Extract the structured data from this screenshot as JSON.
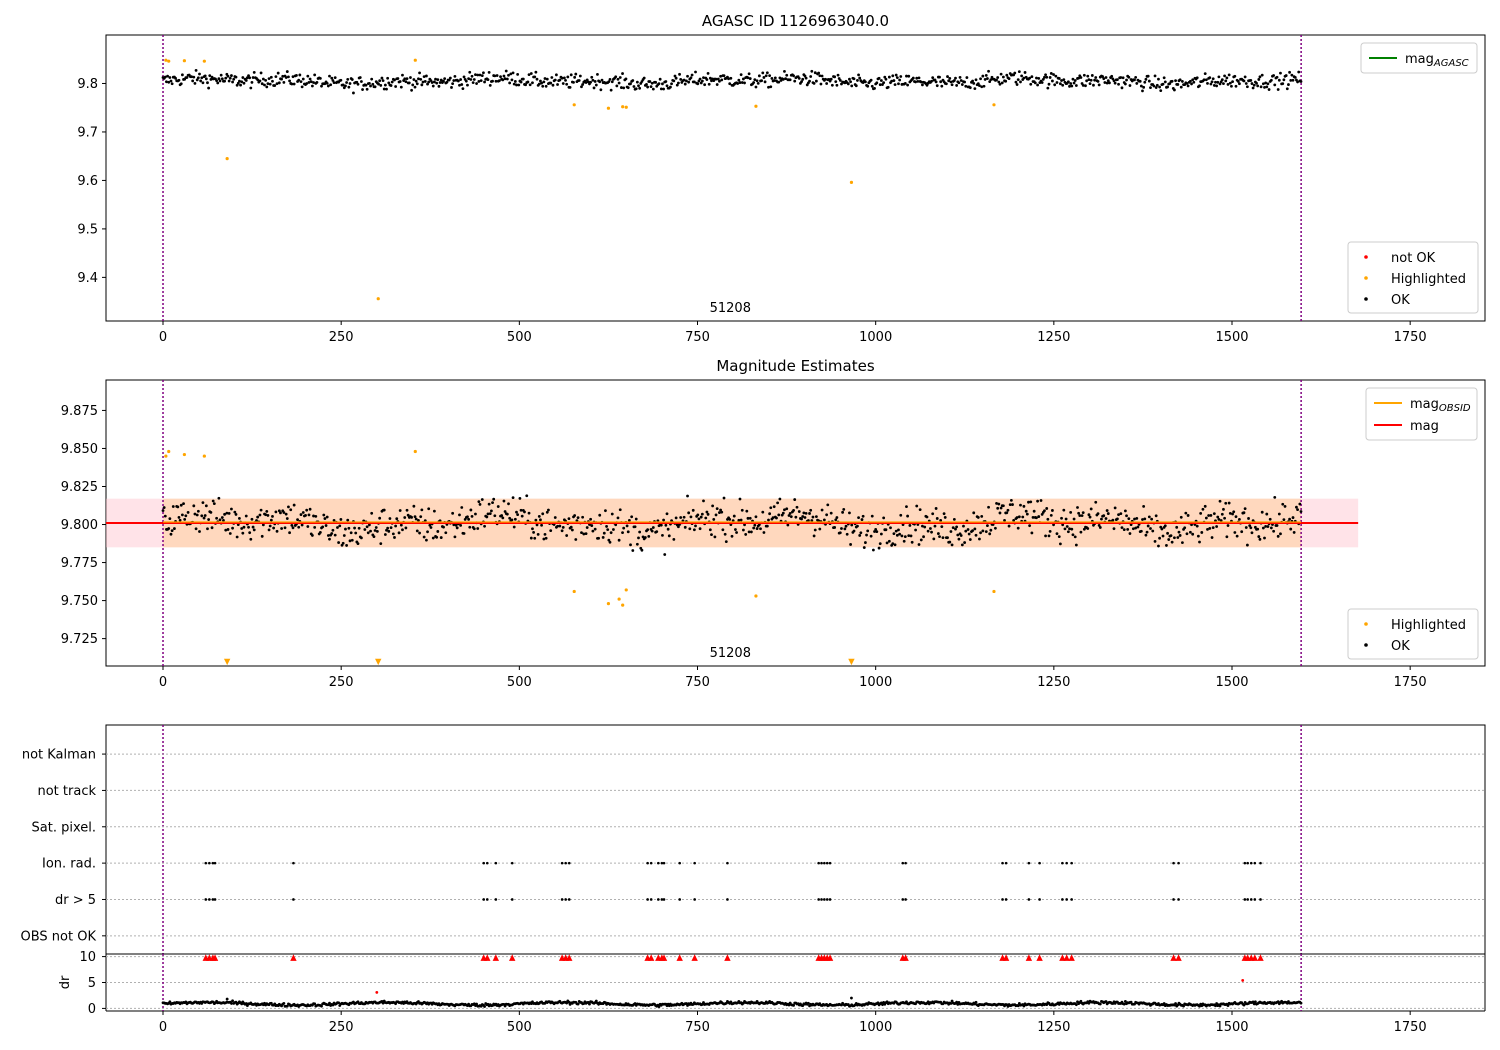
{
  "chart_data": [
    {
      "panel": "agasc",
      "type": "scatter",
      "title": "AGASC ID 1126963040.0",
      "xlim": [
        -80,
        1855
      ],
      "ylim": [
        9.31,
        9.9
      ],
      "xticks": [
        0,
        250,
        500,
        750,
        1000,
        1250,
        1500,
        1750
      ],
      "yticks": [
        9.4,
        9.5,
        9.6,
        9.7,
        9.8
      ],
      "ytick_labels": [
        "9.4",
        "9.5",
        "9.6",
        "9.7",
        "9.8"
      ],
      "vlines": [
        0,
        1597
      ],
      "obsid_label": {
        "text": "51208",
        "x": 796
      },
      "legend_lines": [
        {
          "name": "mag",
          "sub": "AGASC",
          "color": "#008000"
        }
      ],
      "legend_points": [
        {
          "name": "not OK",
          "color": "#ff0000"
        },
        {
          "name": "Highlighted",
          "color": "#ffa500"
        },
        {
          "name": "OK",
          "color": "#000000"
        }
      ],
      "series": [
        {
          "name": "OK",
          "color": "#000000",
          "kind": "ok_band",
          "x_range": [
            0,
            1597
          ],
          "center": 9.805,
          "spread": 0.022
        },
        {
          "name": "Highlighted",
          "color": "#ffa500",
          "x": [
            4,
            8,
            30,
            58,
            90,
            302,
            354,
            577,
            625,
            645,
            650,
            832,
            966,
            1166
          ],
          "y": [
            9.848,
            9.846,
            9.847,
            9.846,
            9.645,
            9.356,
            9.848,
            9.756,
            9.749,
            9.752,
            9.751,
            9.753,
            9.596,
            9.756
          ]
        }
      ]
    },
    {
      "panel": "mag",
      "type": "scatter",
      "title": "Magnitude Estimates",
      "xlim": [
        -80,
        1855
      ],
      "ylim": [
        9.707,
        9.895
      ],
      "xticks": [
        0,
        250,
        500,
        750,
        1000,
        1250,
        1500,
        1750
      ],
      "yticks": [
        9.725,
        9.75,
        9.775,
        9.8,
        9.825,
        9.85,
        9.875
      ],
      "ytick_labels": [
        "9.725",
        "9.750",
        "9.775",
        "9.800",
        "9.825",
        "9.850",
        "9.875"
      ],
      "vlines": [
        0,
        1597
      ],
      "obsid_label": {
        "text": "51208",
        "x": 796
      },
      "mag_line": {
        "value": 9.801,
        "x_range": [
          -80,
          1677
        ]
      },
      "mag_band": {
        "low": 9.785,
        "high": 9.817,
        "x_range": [
          -80,
          1677
        ]
      },
      "legend_lines": [
        {
          "name": "mag",
          "sub": "OBSID",
          "color": "#ffa500"
        },
        {
          "name": "mag",
          "sub": "",
          "color": "#ff0000"
        }
      ],
      "legend_points": [
        {
          "name": "Highlighted",
          "color": "#ffa500"
        },
        {
          "name": "OK",
          "color": "#000000"
        }
      ],
      "series": [
        {
          "name": "OK",
          "color": "#000000",
          "kind": "ok_band",
          "x_range": [
            0,
            1597
          ],
          "center": 9.801,
          "spread": 0.018
        },
        {
          "name": "Highlighted",
          "color": "#ffa500",
          "x": [
            4,
            8,
            30,
            58,
            354,
            577,
            625,
            640,
            645,
            650,
            832,
            1166
          ],
          "y": [
            9.845,
            9.848,
            9.846,
            9.845,
            9.848,
            9.756,
            9.748,
            9.751,
            9.747,
            9.757,
            9.753,
            9.756
          ]
        },
        {
          "name": "Highlighted (off-scale)",
          "color": "#ffa500",
          "marker": "triangle-down",
          "x": [
            90,
            302,
            966
          ],
          "y": [
            9.709,
            9.709,
            9.709
          ]
        }
      ]
    },
    {
      "panel": "flags",
      "type": "scatter",
      "xlim": [
        -80,
        1855
      ],
      "ylim": [
        -0.5,
        5.8
      ],
      "categories": [
        "not Kalman",
        "not track",
        "Sat. pixel.",
        "Ion. rad.",
        "dr > 5",
        "OBS not OK"
      ],
      "category_levels": [
        5,
        4,
        3,
        2,
        1,
        0
      ],
      "vlines": [
        0,
        1597
      ],
      "flag_x": [
        60,
        65,
        70,
        73,
        183,
        450,
        455,
        467,
        490,
        560,
        565,
        570,
        680,
        685,
        695,
        700,
        703,
        725,
        746,
        792,
        920,
        924,
        928,
        932,
        936,
        1038,
        1042,
        1178,
        1183,
        1215,
        1230,
        1262,
        1268,
        1275,
        1418,
        1425,
        1518,
        1522,
        1527,
        1532,
        1540
      ],
      "flag_rows": [
        "Ion. rad.",
        "dr > 5"
      ]
    },
    {
      "panel": "dr",
      "type": "scatter",
      "ylabel": "dr",
      "xlim": [
        -80,
        1855
      ],
      "ylim": [
        -0.5,
        10.5
      ],
      "xticks": [
        0,
        250,
        500,
        750,
        1000,
        1250,
        1500,
        1750
      ],
      "yticks": [
        0,
        5,
        10
      ],
      "vlines": [
        0,
        1597
      ],
      "series": [
        {
          "name": "OK",
          "color": "#000000",
          "kind": "dr_band",
          "x_range": [
            0,
            1597
          ],
          "center": 0.9,
          "spread": 0.45
        },
        {
          "name": "capped",
          "color": "#ff0000",
          "marker": "triangle-up",
          "y": 9.8,
          "x": [
            60,
            65,
            70,
            73,
            183,
            450,
            455,
            467,
            490,
            560,
            565,
            570,
            680,
            685,
            695,
            700,
            703,
            725,
            746,
            792,
            920,
            924,
            928,
            932,
            936,
            1038,
            1042,
            1178,
            1183,
            1215,
            1230,
            1262,
            1268,
            1275,
            1418,
            1425,
            1518,
            1522,
            1527,
            1532,
            1540
          ]
        },
        {
          "name": "not OK",
          "color": "#ff0000",
          "x": [
            300,
            1515
          ],
          "y": [
            3.1,
            5.4
          ]
        },
        {
          "name": "other",
          "color": "#000000",
          "x": [
            90,
            966
          ],
          "y": [
            1.8,
            2.0
          ]
        }
      ]
    }
  ]
}
